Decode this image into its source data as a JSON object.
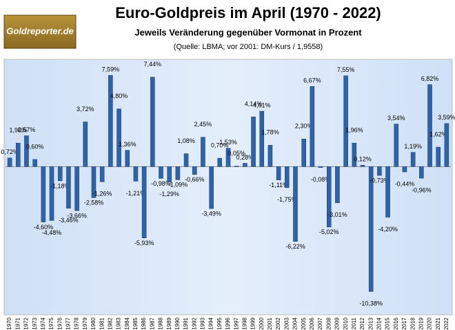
{
  "logo": "Goldreporter.de",
  "chart_data": {
    "type": "bar",
    "title": "Euro-Goldpreis im April (1970 - 2022)",
    "subtitle": "Jeweils Veränderung gegenüber Vormonat in Prozent",
    "source": "(Quelle: LBMA; vor 2001: DM-Kurs / 1,9558)",
    "categories": [
      "1970",
      "1971",
      "1972",
      "1973",
      "1974",
      "1975",
      "1976",
      "1977",
      "1978",
      "1979",
      "1980",
      "1981",
      "1982",
      "1983",
      "1984",
      "1985",
      "1986",
      "1987",
      "1988",
      "1989",
      "1990",
      "1991",
      "1992",
      "1993",
      "1994",
      "1995",
      "1996",
      "1997",
      "1998",
      "1999",
      "2000",
      "2001",
      "2002",
      "2003",
      "2004",
      "2005",
      "2006",
      "2007",
      "2008",
      "2009",
      "2010",
      "2011",
      "2012",
      "2013",
      "2014",
      "2015",
      "2016",
      "2017",
      "2018",
      "2019",
      "2020",
      "2021",
      "2022"
    ],
    "values": [
      0.72,
      1.96,
      2.57,
      0.6,
      -4.6,
      -4.48,
      -1.18,
      -3.46,
      -3.66,
      3.72,
      -2.58,
      -1.26,
      7.59,
      4.8,
      1.36,
      -1.21,
      -5.93,
      7.44,
      -0.98,
      -1.29,
      -1.09,
      1.08,
      -0.66,
      2.45,
      -3.49,
      0.7,
      1.53,
      0.05,
      0.28,
      4.14,
      4.61,
      1.78,
      -1.11,
      -1.75,
      -6.22,
      2.3,
      6.67,
      -0.08,
      -5.02,
      -3.01,
      7.55,
      1.96,
      0.12,
      -10.38,
      -0.73,
      -4.2,
      3.54,
      -0.44,
      1.19,
      -0.96,
      6.82,
      1.62,
      3.59
    ],
    "value_labels": [
      "0,72%",
      "1,96%",
      "2,57%",
      "0,60%",
      "-4,60%",
      "-4,48%",
      "-1,18%",
      "-3,46%",
      "-3,66%",
      "3,72%",
      "-2,58%",
      "-1,26%",
      "7,59%",
      "4,80%",
      "1,36%",
      "-1,21%",
      "-5,93%",
      "7,44%",
      "-0,98%",
      "-1,29%",
      "-1,09%",
      "1,08%",
      "-0,66%",
      "2,45%",
      "-3,49%",
      "0,70%",
      "1,53%",
      "0,05%",
      "0,28%",
      "4,14%",
      "4,61%",
      "1,78%",
      "-1,11%",
      "-1,75%",
      "-6,22%",
      "2,30%",
      "6,67%",
      "-0,08%",
      "-5,02%",
      "-3,01%",
      "7,55%",
      "1,96%",
      "0,12%",
      "-10,38%",
      "-0,73%",
      "-4,20%",
      "3,54%",
      "-0,44%",
      "1,19%",
      "-0,96%",
      "6,82%",
      "1,62%",
      "3,59%"
    ],
    "color": "#2f63a6",
    "ylim": [
      -12.2,
      8.8
    ]
  }
}
